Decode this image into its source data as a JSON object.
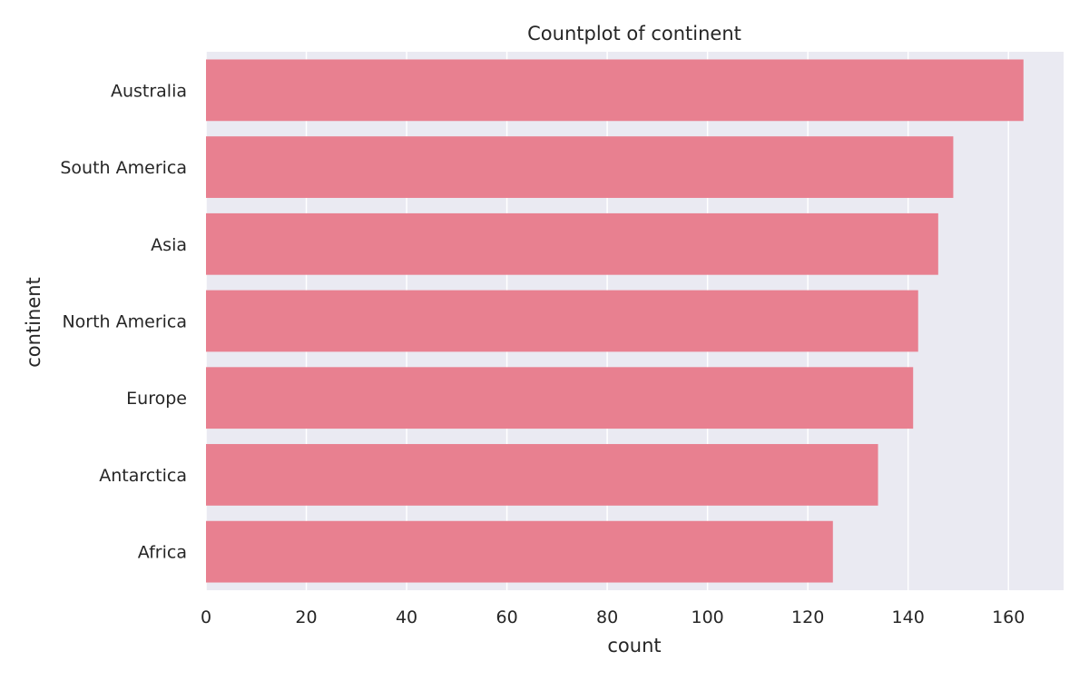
{
  "chart_data": {
    "type": "bar",
    "orientation": "horizontal",
    "title": "Countplot of continent",
    "xlabel": "count",
    "ylabel": "continent",
    "categories": [
      "Australia",
      "South America",
      "Asia",
      "North America",
      "Europe",
      "Antarctica",
      "Africa"
    ],
    "values": [
      163,
      149,
      146,
      142,
      141,
      134,
      125
    ],
    "xlim": [
      0,
      171
    ],
    "xticks": [
      0,
      20,
      40,
      60,
      80,
      100,
      120,
      140,
      160
    ],
    "grid": true,
    "legend": "none",
    "colors": {
      "bar": "#e88090",
      "plot_background": "#eaeaf2",
      "grid": "#ffffff",
      "text": "#262626"
    }
  }
}
